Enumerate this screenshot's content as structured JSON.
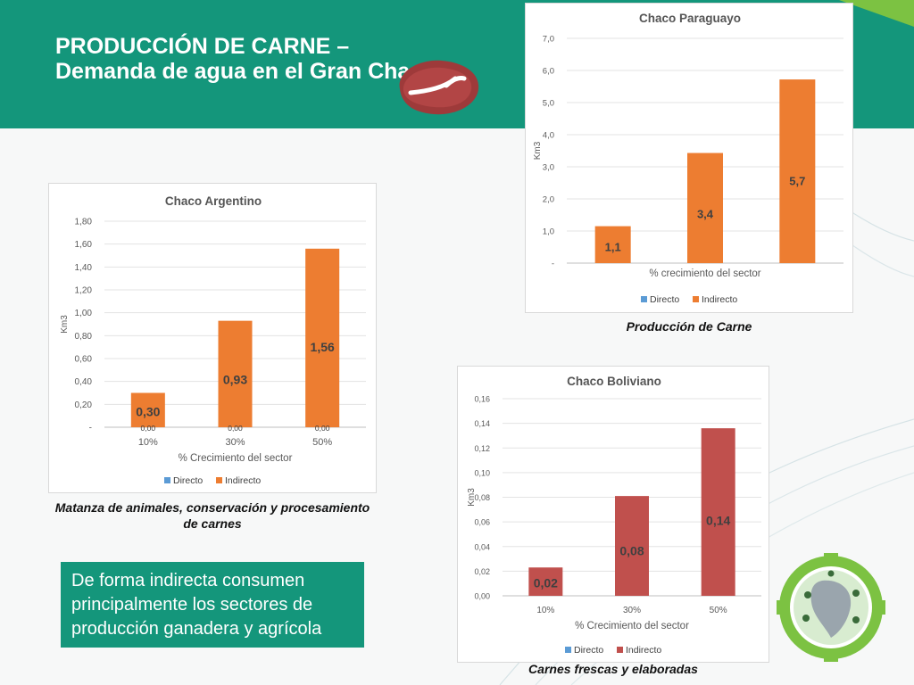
{
  "slide": {
    "title": "PRODUCCIÓN DE CARNE – Demanda de agua en el Gran Chaco",
    "note": "De forma indirecta consumen principalmente los sectores de producción ganadera y agrícola",
    "colors": {
      "teal": "#14967b",
      "orange": "#ed7d31",
      "red": "#c0504d",
      "blue": "#5b9bd5"
    },
    "icons": [
      "meat-steak-icon",
      "gran-chaco-logo"
    ]
  },
  "captions": {
    "argentino": "Matanza de animales, conservación y procesamiento de carnes",
    "paraguayo": "Producción de Carne",
    "boliviano": "Carnes frescas y elaboradas"
  },
  "chart_data": [
    {
      "id": "argentino",
      "type": "bar",
      "title": "Chaco Argentino",
      "xlabel": "% Crecimiento del sector",
      "ylabel": "Km3",
      "categories": [
        "10%",
        "30%",
        "50%"
      ],
      "y_ticks": [
        "-",
        "0,20",
        "0,40",
        "0,60",
        "0,80",
        "1,00",
        "1,20",
        "1,40",
        "1,60",
        "1,80"
      ],
      "ylim": [
        0,
        1.8
      ],
      "series": [
        {
          "name": "Directo",
          "color": "#5b9bd5",
          "values": [
            0,
            0,
            0
          ],
          "labels": [
            "0,00",
            "0,00",
            "0,00"
          ]
        },
        {
          "name": "Indirecto",
          "color": "#ed7d31",
          "values": [
            0.3,
            0.93,
            1.56
          ],
          "labels": [
            "0,30",
            "0,93",
            "1,56"
          ]
        }
      ],
      "legend": "bottom",
      "grid": true
    },
    {
      "id": "paraguayo",
      "type": "bar",
      "title": "Chaco Paraguayo",
      "xlabel": "% crecimiento del sector",
      "ylabel": "Km3",
      "categories": [
        "",
        "",
        ""
      ],
      "y_ticks": [
        "-",
        "1,0",
        "2,0",
        "3,0",
        "4,0",
        "5,0",
        "6,0",
        "7,0"
      ],
      "ylim": [
        0,
        7
      ],
      "series": [
        {
          "name": "Directo",
          "color": "#5b9bd5",
          "values": [
            0,
            0,
            0
          ],
          "labels": [
            "",
            "",
            ""
          ]
        },
        {
          "name": "Indirecto",
          "color": "#ed7d31",
          "values": [
            1.15,
            3.43,
            5.72
          ],
          "labels": [
            "1,1",
            "3,4",
            "5,7"
          ]
        }
      ],
      "legend": "bottom",
      "grid": true
    },
    {
      "id": "boliviano",
      "type": "bar",
      "title": "Chaco Boliviano",
      "xlabel": "% Crecimiento del sector",
      "ylabel": "Km3",
      "categories": [
        "10%",
        "30%",
        "50%"
      ],
      "y_ticks": [
        "0,00",
        "0,02",
        "0,04",
        "0,06",
        "0,08",
        "0,10",
        "0,12",
        "0,14",
        "0,16"
      ],
      "ylim": [
        0,
        0.16
      ],
      "series": [
        {
          "name": "Directo",
          "color": "#5b9bd5",
          "values": [
            0,
            0,
            0
          ],
          "labels": [
            "",
            "",
            ""
          ]
        },
        {
          "name": "Indirecto",
          "color": "#c0504d",
          "values": [
            0.023,
            0.081,
            0.136
          ],
          "labels": [
            "0,02",
            "0,08",
            "0,14"
          ]
        }
      ],
      "legend": "bottom",
      "grid": true
    }
  ]
}
